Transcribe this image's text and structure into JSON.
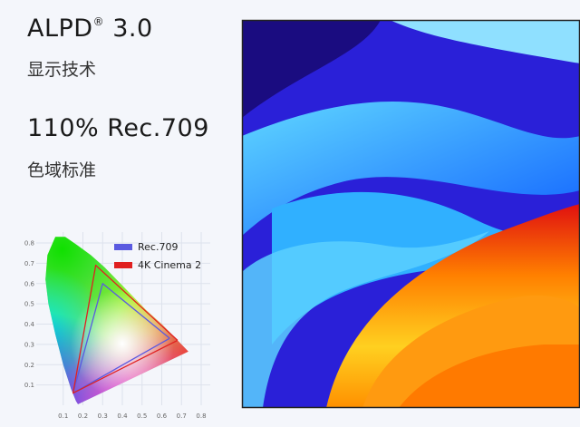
{
  "header": {
    "title": "ALPD",
    "title_mark": "®",
    "title_version": "3.0",
    "subtitle": "显示技术",
    "gamut": "110% Rec.709",
    "gamut_caption": "色域标准"
  },
  "chart_data": {
    "type": "line",
    "xlim": [
      0,
      0.8
    ],
    "ylim": [
      0,
      0.8
    ],
    "xticks": [
      0.1,
      0.2,
      0.3,
      0.4,
      0.5,
      0.6,
      0.7,
      0.8
    ],
    "yticks": [
      0.1,
      0.2,
      0.3,
      0.4,
      0.5,
      0.6,
      0.7,
      0.8
    ],
    "grid": true,
    "series": [
      {
        "name": "Rec.709",
        "color": "#5a5ae0",
        "x": [
          0.64,
          0.3,
          0.15,
          0.64
        ],
        "values": [
          0.33,
          0.6,
          0.06,
          0.33
        ]
      },
      {
        "name": "4K Cinema 2",
        "color": "#e02020",
        "x": [
          0.68,
          0.265,
          0.15,
          0.68
        ],
        "values": [
          0.32,
          0.69,
          0.06,
          0.32
        ]
      }
    ]
  }
}
